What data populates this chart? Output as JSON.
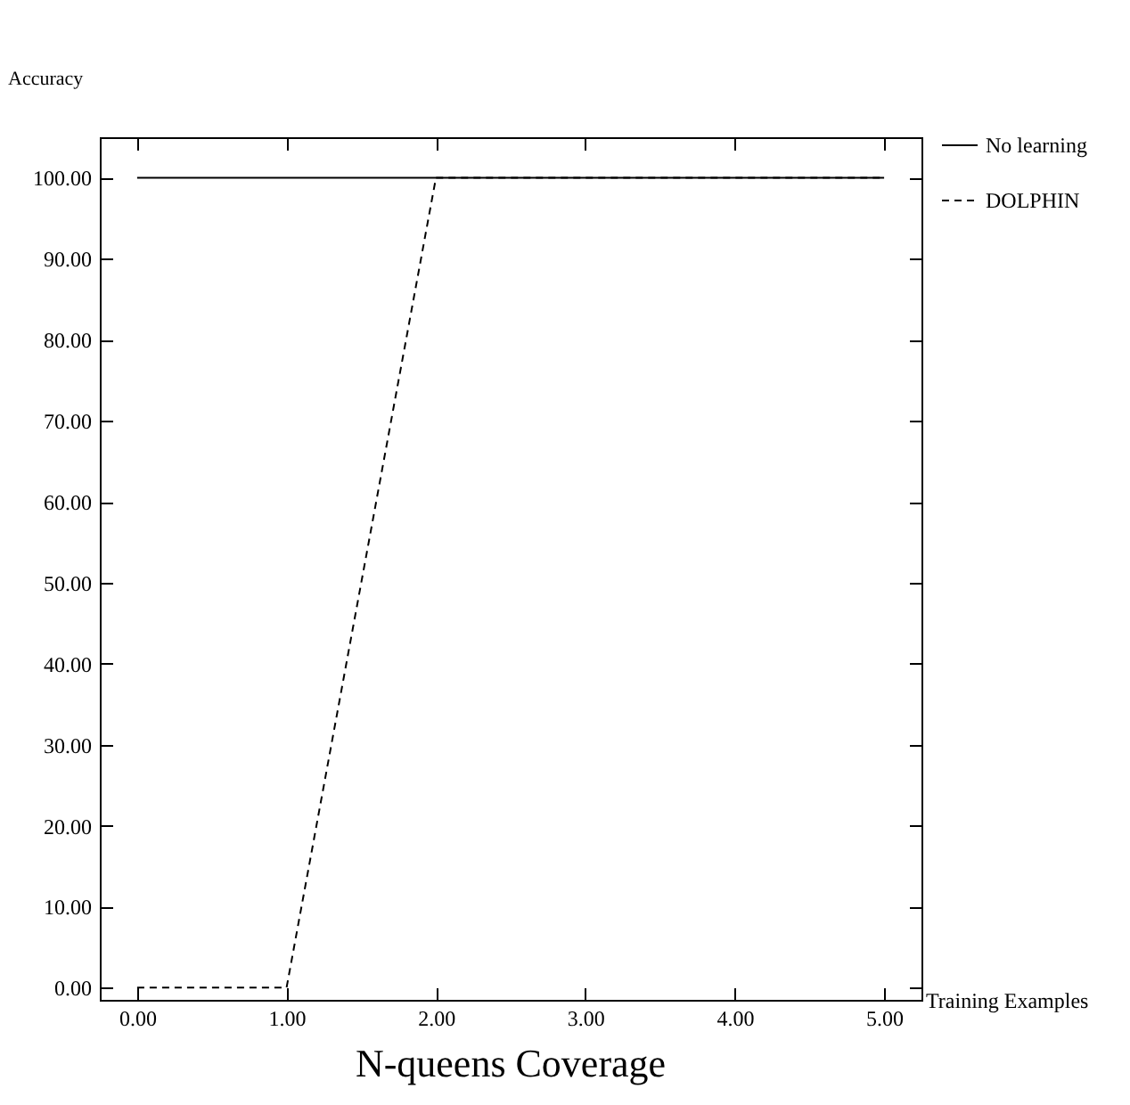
{
  "chart_data": {
    "type": "line",
    "title": "N-queens Coverage",
    "xlabel": "Training Examples",
    "ylabel": "Accuracy",
    "x": [
      0,
      1,
      2,
      3,
      4,
      5
    ],
    "series": [
      {
        "name": "No learning",
        "color": "#000000",
        "line_style": "solid",
        "values": [
          100,
          100,
          100,
          100,
          100,
          100
        ]
      },
      {
        "name": "DOLPHIN",
        "color": "#000000",
        "line_style": "dashed",
        "values": [
          0,
          0,
          100,
          100,
          100,
          100
        ]
      }
    ],
    "xlim": [
      -0.25,
      5.25
    ],
    "ylim": [
      -1.5,
      105
    ],
    "xticks": [
      {
        "value": 0,
        "label": "0.00"
      },
      {
        "value": 1,
        "label": "1.00"
      },
      {
        "value": 2,
        "label": "2.00"
      },
      {
        "value": 3,
        "label": "3.00"
      },
      {
        "value": 4,
        "label": "4.00"
      },
      {
        "value": 5,
        "label": "5.00"
      }
    ],
    "yticks": [
      {
        "value": 0,
        "label": "0.00"
      },
      {
        "value": 10,
        "label": "10.00"
      },
      {
        "value": 20,
        "label": "20.00"
      },
      {
        "value": 30,
        "label": "30.00"
      },
      {
        "value": 40,
        "label": "40.00"
      },
      {
        "value": 50,
        "label": "50.00"
      },
      {
        "value": 60,
        "label": "60.00"
      },
      {
        "value": 70,
        "label": "70.00"
      },
      {
        "value": 80,
        "label": "80.00"
      },
      {
        "value": 90,
        "label": "90.00"
      },
      {
        "value": 100,
        "label": "100.00"
      }
    ],
    "legend": "top right",
    "grid": false,
    "marker": "none"
  }
}
